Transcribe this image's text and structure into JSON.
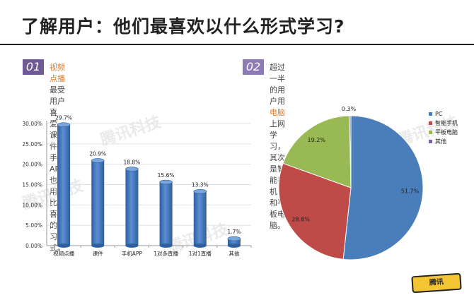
{
  "header": {
    "title": "了解用户：他们最喜欢以什么形式学习?"
  },
  "callouts": [
    {
      "number": "01",
      "highlight": "视频点播",
      "line1_rest": "最受用户喜爱，课件、手机APP也是用户",
      "line2": "比较喜欢的学习方式。"
    },
    {
      "number": "02",
      "line1_pre": "超过一半的用户用",
      "highlight": "电脑",
      "line1_post": "上网学习，其次是智能手机",
      "line2": "和平板电脑。"
    }
  ],
  "watermark_text": "腾讯科技",
  "logo_text": "腾讯",
  "colors": {
    "bar": "#2f5f9e",
    "bar_light": "#5b8fd3",
    "pie": [
      "#4a7ebb",
      "#be4b48",
      "#98b954",
      "#7d60a0"
    ],
    "accent": "#e0782c"
  },
  "chart_data": [
    {
      "type": "bar",
      "categories": [
        "视频点播",
        "课件",
        "手机APP",
        "1对多直播",
        "1对1直播",
        "其他"
      ],
      "values": [
        29.7,
        20.9,
        18.8,
        15.6,
        13.3,
        1.7
      ],
      "data_labels": [
        "29.7%",
        "20.9%",
        "18.8%",
        "15.6%",
        "13.3%",
        "1.7%"
      ],
      "ylim": [
        0,
        30
      ],
      "yticks": [
        "0.00%",
        "5.00%",
        "10.00%",
        "15.00%",
        "20.00%",
        "25.00%",
        "30.00%"
      ],
      "grid": true,
      "xlabel": "",
      "ylabel": ""
    },
    {
      "type": "pie",
      "labels": [
        "PC",
        "智能手机",
        "平板电脑",
        "其他"
      ],
      "values": [
        51.7,
        28.8,
        19.2,
        0.3
      ],
      "data_labels": [
        "51.7%",
        "28.8%",
        "19.2%",
        "0.3%"
      ],
      "legend": "right"
    }
  ]
}
